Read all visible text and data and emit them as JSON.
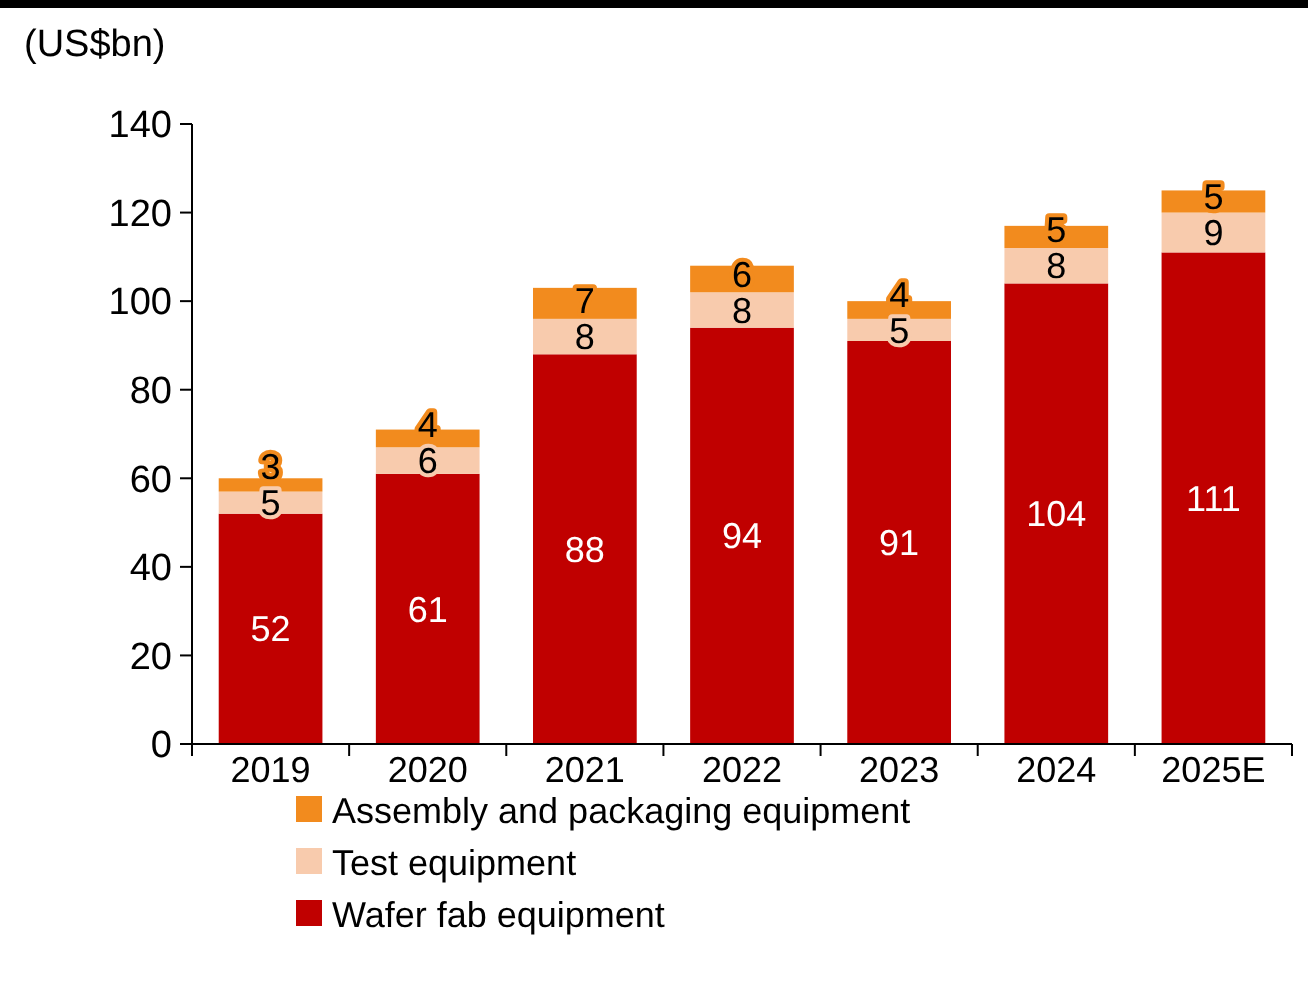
{
  "chart_data": {
    "type": "bar",
    "stacked": true,
    "ylabel": "(US$bn)",
    "categories": [
      "2019",
      "2020",
      "2021",
      "2022",
      "2023",
      "2024",
      "2025E"
    ],
    "series": [
      {
        "name": "Wafer fab equipment",
        "color": "#c00000",
        "values": [
          52,
          61,
          88,
          94,
          91,
          104,
          111
        ]
      },
      {
        "name": "Test equipment",
        "color": "#f8cbad",
        "values": [
          5,
          6,
          8,
          8,
          5,
          8,
          9
        ]
      },
      {
        "name": "Assembly and packaging equipment",
        "color": "#f28b1e",
        "values": [
          3,
          4,
          7,
          6,
          4,
          5,
          5
        ]
      }
    ],
    "ylim": [
      0,
      140
    ],
    "yticks": [
      0,
      20,
      40,
      60,
      80,
      100,
      120,
      140
    ],
    "grid": false,
    "data_labels": true,
    "legend": "bottom"
  }
}
